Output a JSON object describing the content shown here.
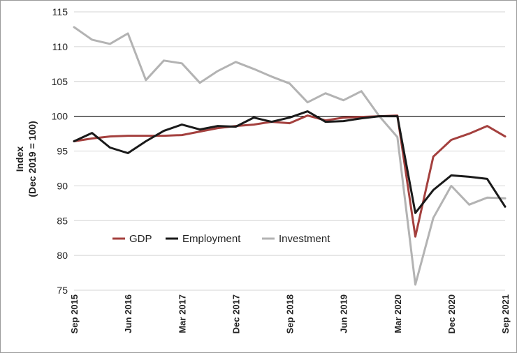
{
  "chart_data": {
    "type": "line",
    "title": "",
    "ylabel_line1": "Index",
    "ylabel_line2": "(Dec 2019 = 100)",
    "xlabel": "",
    "ylim": [
      75,
      115
    ],
    "y_ticks": [
      75,
      80,
      85,
      90,
      95,
      100,
      105,
      110,
      115
    ],
    "reference_line": 100,
    "grid": true,
    "legend_position": "lower-left",
    "x": [
      "Sep 2015",
      "Dec 2015",
      "Mar 2016",
      "Jun 2016",
      "Sep 2016",
      "Dec 2016",
      "Mar 2017",
      "Jun 2017",
      "Sep 2017",
      "Dec 2017",
      "Mar 2018",
      "Jun 2018",
      "Sep 2018",
      "Dec 2018",
      "Mar 2019",
      "Jun 2019",
      "Sep 2019",
      "Dec 2019",
      "Mar 2020",
      "Jun 2020",
      "Sep 2020",
      "Dec 2020",
      "Mar 2021",
      "Jun 2021",
      "Sep 2021"
    ],
    "x_tick_labels": [
      "Sep 2015",
      "Jun 2016",
      "Mar 2017",
      "Dec 2017",
      "Sep 2018",
      "Jun 2019",
      "Mar 2020",
      "Dec 2020",
      "Sep 2021"
    ],
    "series": [
      {
        "name": "GDP",
        "color": "#a4403e",
        "values": [
          96.4,
          96.8,
          97.1,
          97.2,
          97.2,
          97.2,
          97.3,
          97.8,
          98.3,
          98.6,
          98.8,
          99.2,
          99.0,
          100.1,
          99.4,
          99.8,
          99.9,
          100.0,
          100.1,
          82.7,
          94.2,
          96.6,
          97.5,
          98.6,
          97.1
        ]
      },
      {
        "name": "Employment",
        "color": "#1a1a1a",
        "values": [
          96.4,
          97.6,
          95.5,
          94.7,
          96.4,
          97.9,
          98.8,
          98.1,
          98.6,
          98.5,
          99.8,
          99.2,
          99.8,
          100.7,
          99.2,
          99.3,
          99.7,
          100.0,
          100.0,
          86.1,
          89.4,
          91.5,
          91.3,
          91.0,
          87.0
        ]
      },
      {
        "name": "Investment",
        "color": "#b3b3b3",
        "values": [
          112.8,
          111.0,
          110.4,
          111.9,
          105.2,
          108.0,
          107.6,
          104.8,
          106.5,
          107.8,
          106.8,
          105.7,
          104.7,
          102.0,
          103.3,
          102.3,
          103.6,
          100.0,
          97.0,
          75.8,
          85.4,
          90.0,
          87.3,
          88.3,
          88.2
        ]
      }
    ]
  }
}
